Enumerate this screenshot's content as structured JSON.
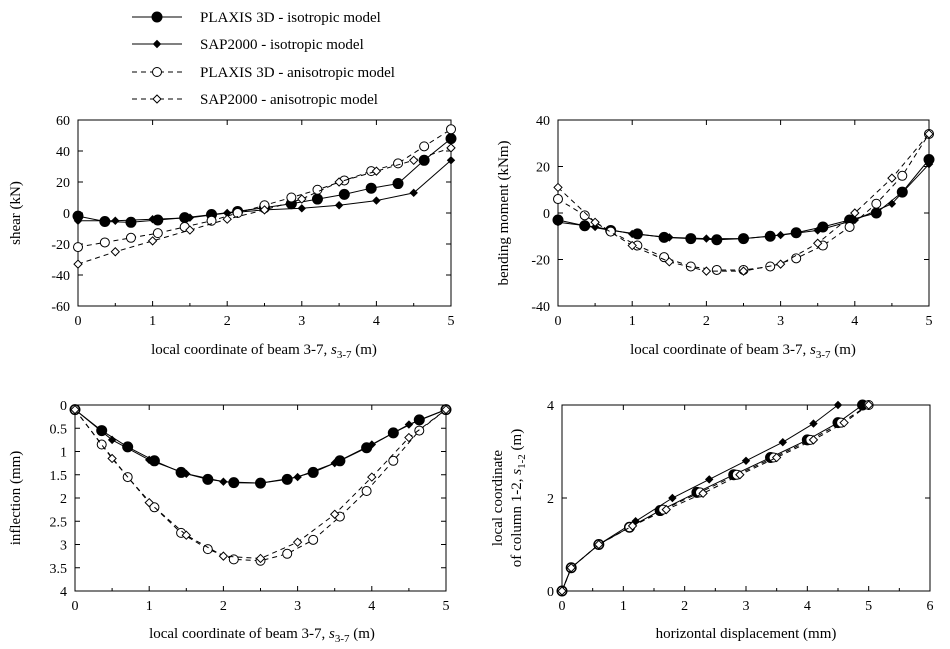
{
  "legend": [
    {
      "label": "PLAXIS 3D - isotropic model",
      "style": "solid",
      "marker": "filled-circle"
    },
    {
      "label": "SAP2000 - isotropic model",
      "style": "solid",
      "marker": "filled-diamond"
    },
    {
      "label": "PLAXIS 3D - anisotropic model",
      "style": "dashed",
      "marker": "open-circle"
    },
    {
      "label": "SAP2000 - anisotropic model",
      "style": "dashed",
      "marker": "open-diamond"
    }
  ],
  "chart_data": [
    {
      "type": "line",
      "xlabel_main": "local coordinate of beam 3-7, ",
      "xlabel_sym": "s",
      "xlabel_sub": "3-7",
      "xlabel_unit": " (m)",
      "ylabel": "shear (kN)",
      "xlim": [
        0,
        5
      ],
      "ylim": [
        -60,
        60
      ],
      "y_inverted": false,
      "xticks": [
        0,
        1,
        2,
        3,
        4,
        5
      ],
      "yticks": [
        -60,
        -40,
        -20,
        0,
        20,
        40,
        60
      ],
      "series": [
        {
          "name": "PLAXIS 3D - isotropic model",
          "x": [
            0,
            0.36,
            0.71,
            1.07,
            1.43,
            1.79,
            2.14,
            2.5,
            2.86,
            3.21,
            3.57,
            3.93,
            4.29,
            4.64,
            5.0
          ],
          "y": [
            -2,
            -5.5,
            -6,
            -4.5,
            -3,
            -1,
            1,
            3.5,
            6,
            9,
            12,
            16,
            19,
            34,
            48
          ]
        },
        {
          "name": "SAP2000 - isotropic model",
          "x": [
            0,
            0.5,
            1.0,
            1.5,
            2.0,
            2.5,
            3.0,
            3.5,
            4.0,
            4.5,
            5.0
          ],
          "y": [
            -5,
            -5,
            -4,
            -3,
            0,
            2,
            3,
            5,
            8,
            13,
            34
          ]
        },
        {
          "name": "PLAXIS 3D - anisotropic model",
          "x": [
            0,
            0.36,
            0.71,
            1.07,
            1.43,
            1.79,
            2.14,
            2.5,
            2.86,
            3.21,
            3.57,
            3.93,
            4.29,
            4.64,
            5.0
          ],
          "y": [
            -22,
            -19,
            -16,
            -13,
            -9,
            -5,
            0,
            5,
            10,
            15,
            21,
            27,
            32,
            43,
            54
          ]
        },
        {
          "name": "SAP2000 - anisotropic model",
          "x": [
            0,
            0.5,
            1.0,
            1.5,
            2.0,
            2.5,
            3.0,
            3.5,
            4.0,
            4.5,
            5.0
          ],
          "y": [
            -33,
            -25,
            -18,
            -11,
            -4,
            2,
            9,
            20,
            27,
            34,
            42
          ]
        }
      ]
    },
    {
      "type": "line",
      "xlabel_main": "local coordinate of beam 3-7, ",
      "xlabel_sym": "s",
      "xlabel_sub": "3-7",
      "xlabel_unit": " (m)",
      "ylabel": "bending moment (kNm)",
      "xlim": [
        0,
        5
      ],
      "ylim": [
        -40,
        40
      ],
      "y_inverted": false,
      "xticks": [
        0,
        1,
        2,
        3,
        4,
        5
      ],
      "yticks": [
        -40,
        -20,
        0,
        20,
        40
      ],
      "series": [
        {
          "name": "PLAXIS 3D - isotropic model",
          "x": [
            0,
            0.36,
            0.71,
            1.07,
            1.43,
            1.79,
            2.14,
            2.5,
            2.86,
            3.21,
            3.57,
            3.93,
            4.29,
            4.64,
            5.0
          ],
          "y": [
            -3,
            -5.5,
            -7.5,
            -9,
            -10.5,
            -11,
            -11.5,
            -11,
            -10,
            -8.5,
            -6,
            -3,
            0,
            9,
            23
          ]
        },
        {
          "name": "SAP2000 - isotropic model",
          "x": [
            0,
            0.5,
            1.0,
            1.5,
            2.0,
            2.5,
            3.0,
            3.5,
            4.0,
            4.5,
            5.0
          ],
          "y": [
            -4,
            -6,
            -9,
            -10.5,
            -11,
            -11,
            -9.5,
            -7.5,
            -3,
            4,
            21
          ]
        },
        {
          "name": "PLAXIS 3D - anisotropic model",
          "x": [
            0,
            0.36,
            0.71,
            1.07,
            1.43,
            1.79,
            2.14,
            2.5,
            2.86,
            3.21,
            3.57,
            3.93,
            4.29,
            4.64,
            5.0
          ],
          "y": [
            6,
            -1,
            -8,
            -14,
            -19,
            -23,
            -24.5,
            -24.5,
            -23,
            -19.5,
            -14,
            -6,
            4,
            16,
            34
          ]
        },
        {
          "name": "SAP2000 - anisotropic model",
          "x": [
            0,
            0.5,
            1.0,
            1.5,
            2.0,
            2.5,
            3.0,
            3.5,
            4.0,
            4.5,
            5.0
          ],
          "y": [
            11,
            -4,
            -14,
            -21,
            -25,
            -25,
            -22,
            -13,
            0,
            15,
            34
          ]
        }
      ]
    },
    {
      "type": "line",
      "xlabel_main": "local coordinate of beam 3-7, ",
      "xlabel_sym": "s",
      "xlabel_sub": "3-7",
      "xlabel_unit": " (m)",
      "ylabel": "inflection (mm)",
      "xlim": [
        0,
        5
      ],
      "ylim": [
        0,
        4
      ],
      "y_inverted": true,
      "xticks": [
        0,
        1,
        2,
        3,
        4,
        5
      ],
      "yticks": [
        0,
        0.5,
        1,
        1.5,
        2,
        2.5,
        3,
        3.5,
        4
      ],
      "series": [
        {
          "name": "PLAXIS 3D - isotropic model",
          "x": [
            0,
            0.36,
            0.71,
            1.07,
            1.43,
            1.79,
            2.14,
            2.5,
            2.86,
            3.21,
            3.57,
            3.93,
            4.29,
            4.64,
            5.0
          ],
          "y": [
            0.1,
            0.55,
            0.9,
            1.2,
            1.45,
            1.6,
            1.67,
            1.68,
            1.6,
            1.45,
            1.2,
            0.92,
            0.6,
            0.32,
            0.1
          ]
        },
        {
          "name": "SAP2000 - isotropic model",
          "x": [
            0,
            0.5,
            1.0,
            1.5,
            2.0,
            2.5,
            3.0,
            3.5,
            4.0,
            4.5,
            5.0
          ],
          "y": [
            0.1,
            0.75,
            1.18,
            1.48,
            1.65,
            1.68,
            1.55,
            1.25,
            0.85,
            0.42,
            0.1
          ]
        },
        {
          "name": "PLAXIS 3D - anisotropic model",
          "x": [
            0,
            0.36,
            0.71,
            1.07,
            1.43,
            1.79,
            2.14,
            2.5,
            2.86,
            3.21,
            3.57,
            3.93,
            4.29,
            4.64,
            5.0
          ],
          "y": [
            0.1,
            0.85,
            1.55,
            2.2,
            2.75,
            3.1,
            3.32,
            3.35,
            3.2,
            2.9,
            2.4,
            1.85,
            1.2,
            0.55,
            0.1
          ]
        },
        {
          "name": "SAP2000 - anisotropic model",
          "x": [
            0,
            0.5,
            1.0,
            1.5,
            2.0,
            2.5,
            3.0,
            3.5,
            4.0,
            4.5,
            5.0
          ],
          "y": [
            0.1,
            1.15,
            2.1,
            2.8,
            3.25,
            3.3,
            2.95,
            2.35,
            1.55,
            0.7,
            0.1
          ]
        }
      ]
    },
    {
      "type": "line",
      "xlabel_main": "horizontal displacement (mm)",
      "ylabel_line1": "local coordinate",
      "ylabel_line2_main": "of column 1-2, ",
      "ylabel_sym": "s",
      "ylabel_sub": "1-2",
      "ylabel_unit": " (m)",
      "xlim": [
        0,
        6
      ],
      "ylim": [
        0,
        4
      ],
      "y_inverted": false,
      "xticks": [
        0,
        1,
        2,
        3,
        4,
        5,
        6
      ],
      "yticks": [
        0,
        2,
        4
      ],
      "series": [
        {
          "name": "PLAXIS 3D - isotropic model",
          "x": [
            0,
            0.15,
            0.6,
            1.1,
            1.6,
            2.2,
            2.8,
            3.4,
            4.0,
            4.5,
            4.9
          ],
          "y": [
            0,
            0.5,
            1.0,
            1.37,
            1.73,
            2.12,
            2.5,
            2.87,
            3.25,
            3.62,
            4.0
          ]
        },
        {
          "name": "SAP2000 - isotropic model",
          "x": [
            0,
            0.15,
            0.6,
            1.2,
            1.8,
            2.4,
            3.0,
            3.6,
            4.1,
            4.5
          ],
          "y": [
            0,
            0.5,
            1.0,
            1.5,
            2.0,
            2.4,
            2.8,
            3.2,
            3.6,
            4.0
          ]
        },
        {
          "name": "PLAXIS 3D - anisotropic model",
          "x": [
            0,
            0.15,
            0.6,
            1.1,
            1.65,
            2.25,
            2.85,
            3.45,
            4.05,
            4.55,
            5.0
          ],
          "y": [
            0,
            0.5,
            1.0,
            1.37,
            1.75,
            2.12,
            2.5,
            2.87,
            3.25,
            3.62,
            4.0
          ]
        },
        {
          "name": "SAP2000 - anisotropic model",
          "x": [
            0,
            0.15,
            0.6,
            1.15,
            1.7,
            2.3,
            2.9,
            3.5,
            4.1,
            4.6,
            5.0
          ],
          "y": [
            0,
            0.5,
            1.0,
            1.4,
            1.75,
            2.1,
            2.5,
            2.87,
            3.25,
            3.62,
            4.0
          ]
        }
      ]
    }
  ]
}
